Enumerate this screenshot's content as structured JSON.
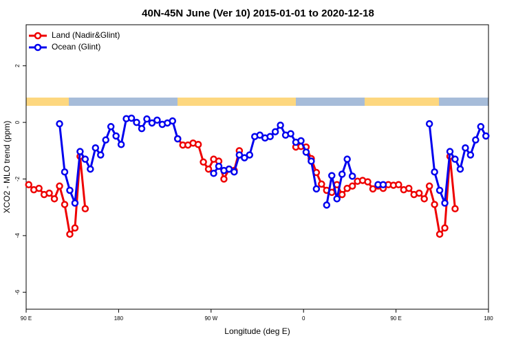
{
  "chart_data": {
    "type": "line",
    "title": "40N-45N June (Ver 10)   2015-01-01 to 2020-12-18",
    "x_label": "Longitude (deg E)",
    "y_label": "XCO2 - MLO trend (ppm)",
    "x": [
      92.5,
      97.5,
      102.5,
      107.5,
      112.5,
      117.5,
      122.5,
      127.5,
      132.5,
      137.5,
      142.5,
      147.5,
      152.5,
      157.5,
      162.5,
      167.5,
      172.5,
      177.5,
      182.5,
      187.5,
      192.5,
      197.5,
      202.5,
      207.5,
      212.5,
      217.5,
      222.5,
      227.5,
      232.5,
      237.5,
      242.5,
      247.5,
      252.5,
      257.5,
      262.5,
      267.5,
      272.5,
      277.5,
      282.5,
      287.5,
      292.5,
      297.5,
      302.5,
      307.5,
      312.5,
      317.5,
      322.5,
      327.5,
      332.5,
      337.5,
      342.5,
      347.5,
      352.5,
      357.5,
      362.5,
      367.5,
      372.5,
      377.5,
      382.5,
      387.5,
      392.5,
      397.5,
      402.5,
      407.5,
      412.5,
      417.5,
      422.5,
      427.5,
      432.5,
      437.5,
      442.5,
      447.5,
      452.5,
      457.5,
      462.5,
      467.5,
      472.5,
      477.5,
      482.5,
      487.5,
      492.5,
      497.5,
      502.5,
      507.5,
      512.5,
      517.5,
      522.5,
      527.5,
      532.5,
      537.5
    ],
    "series": [
      {
        "name": "Land (Nadir&Glint)",
        "color": "#ee0000",
        "values": [
          -2.2,
          -2.38,
          -2.33,
          -2.55,
          -2.5,
          -2.7,
          -2.25,
          -2.9,
          -3.95,
          -3.73,
          -1.2,
          -3.05,
          null,
          null,
          null,
          null,
          null,
          null,
          null,
          null,
          null,
          null,
          null,
          null,
          null,
          null,
          null,
          null,
          null,
          -0.58,
          -0.8,
          -0.8,
          -0.73,
          -0.78,
          -1.4,
          -1.65,
          -1.3,
          -1.37,
          -2.0,
          -1.65,
          -1.7,
          -1.0,
          null,
          null,
          null,
          null,
          null,
          null,
          null,
          null,
          null,
          null,
          -0.87,
          -0.85,
          -0.87,
          -1.28,
          -1.77,
          -2.18,
          -2.4,
          -2.47,
          -2.2,
          -2.55,
          -2.33,
          -2.25,
          -2.08,
          -2.05,
          -2.1,
          -2.35,
          -2.25,
          -2.33,
          -2.2,
          -2.22,
          -2.2,
          -2.38,
          -2.33,
          -2.55,
          -2.5,
          -2.7,
          -2.25,
          -2.9,
          -3.95,
          -3.73,
          -1.2,
          -3.05,
          null,
          null,
          null,
          null,
          null,
          null
        ]
      },
      {
        "name": "Ocean (Glint)",
        "color": "#0000ee",
        "values": [
          null,
          null,
          null,
          null,
          null,
          null,
          -0.05,
          -1.75,
          -2.4,
          -2.85,
          -1.03,
          -1.3,
          -1.65,
          -0.9,
          -1.15,
          -0.62,
          -0.15,
          -0.48,
          -0.78,
          0.13,
          0.15,
          0.0,
          -0.22,
          0.12,
          -0.02,
          0.08,
          -0.07,
          -0.02,
          0.05,
          -0.58,
          null,
          null,
          null,
          null,
          null,
          null,
          -1.8,
          -1.55,
          -1.7,
          -1.65,
          -1.75,
          -1.15,
          -1.25,
          -1.15,
          -0.5,
          -0.45,
          -0.55,
          -0.5,
          -0.33,
          -0.1,
          -0.45,
          -0.4,
          -0.7,
          -0.65,
          -1.05,
          -1.37,
          -2.35,
          null,
          -2.92,
          -1.88,
          -2.7,
          -1.83,
          -1.3,
          -1.9,
          null,
          null,
          null,
          null,
          -2.2,
          -2.2,
          null,
          null,
          null,
          null,
          null,
          null,
          null,
          null,
          -0.05,
          -1.75,
          -2.4,
          -2.85,
          -1.03,
          -1.3,
          -1.65,
          -0.9,
          -1.15,
          -0.62,
          -0.15,
          -0.48
        ]
      }
    ],
    "xlim": [
      90,
      540
    ],
    "xticks": [
      {
        "value": 90,
        "label": "90 E"
      },
      180,
      {
        "value": 270,
        "label": "90 W"
      },
      {
        "value": 360,
        "label": "0"
      },
      {
        "value": 450,
        "label": "90 E"
      },
      {
        "value": 540,
        "label": "180"
      }
    ],
    "ylim": [
      -6.6,
      3.45
    ],
    "yticks": [
      2,
      0,
      -2,
      -4,
      -6
    ],
    "legend": "top-left"
  }
}
